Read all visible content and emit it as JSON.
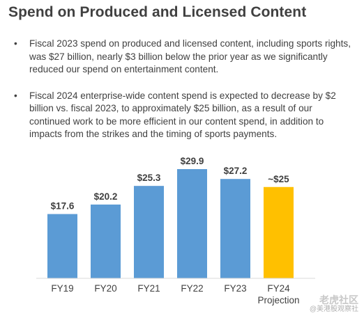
{
  "title": "Spend on Produced and Licensed Content",
  "bullets": [
    {
      "marker": "•",
      "text": "Fiscal 2023 spend on produced and licensed content, including sports rights, was $27 billion, nearly $3 billion below the prior year as we significantly reduced our spend on entertainment content."
    },
    {
      "marker": "•",
      "text": "Fiscal 2024 enterprise-wide content spend is expected to decrease by $2 billion vs. fiscal 2023, to approximately $25 billion, as a result of our continued work to be more efficient in our content spend, in addition to impacts from the strikes and the timing of sports payments."
    }
  ],
  "chart_data": {
    "type": "bar",
    "categories": [
      "FY19",
      "FY20",
      "FY21",
      "FY22",
      "FY23",
      "FY24\nProjection"
    ],
    "values": [
      17.6,
      20.2,
      25.3,
      29.9,
      27.2,
      25
    ],
    "data_labels": [
      "$17.6",
      "$20.2",
      "$25.3",
      "$29.9",
      "$27.2",
      "~$25"
    ],
    "colors": [
      "#5b9bd5",
      "#5b9bd5",
      "#5b9bd5",
      "#5b9bd5",
      "#5b9bd5",
      "#ffc000"
    ],
    "title": "",
    "xlabel": "",
    "ylabel": "",
    "ylim": [
      0,
      32
    ],
    "grid": false,
    "legend": "none"
  },
  "watermark": {
    "main": "老虎社区",
    "sub": "@美港股观察社"
  }
}
